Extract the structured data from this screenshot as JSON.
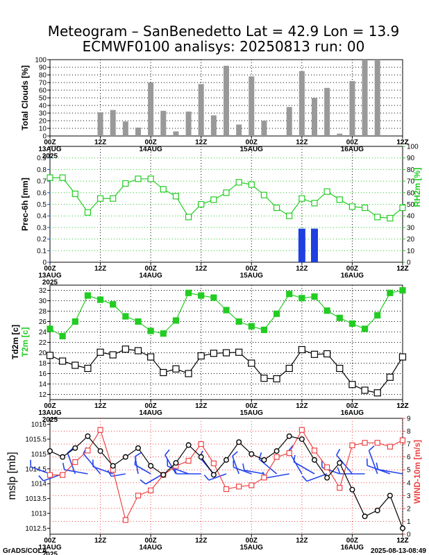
{
  "title_line1": "Meteogram – SanBenedetto Lat = 42.9 Lon = 13.9",
  "title_line2": "ECMWF0100 analisys: 20250813 run: 00",
  "footer_left": "GrADS/COLA",
  "footer_right": "2025-08-13-08:49",
  "colors": {
    "bars_clouds": "#999999",
    "precip": "#1f3fe0",
    "rh": "#22cc22",
    "t2m": "#22cc22",
    "td2m": "#000000",
    "mslp": "#000000",
    "wind": "#ee4444",
    "barbs": "#2244ee"
  },
  "chart_data": [
    {
      "type": "bar",
      "ylabel": "Total Clouds [%]",
      "ylim": [
        0,
        100
      ],
      "yticks": [
        0,
        10,
        20,
        30,
        40,
        50,
        60,
        70,
        80,
        90,
        100
      ],
      "xlim": [
        0,
        84
      ],
      "xticks": [
        "00Z",
        "12Z",
        "00Z",
        "12Z",
        "00Z",
        "12Z",
        "00Z",
        "12Z"
      ],
      "day_labels": [
        {
          "at": 0,
          "label": "13AUG"
        },
        {
          "at": 24,
          "label": "14AUG"
        },
        {
          "at": 48,
          "label": "15AUG"
        },
        {
          "at": 72,
          "label": "16AUG"
        }
      ],
      "year_label": "2025",
      "x": [
        12,
        15,
        18,
        21,
        24,
        27,
        30,
        33,
        36,
        39,
        42,
        45,
        48,
        51,
        54,
        57,
        60,
        63,
        66,
        69,
        72,
        75,
        78,
        81,
        84
      ],
      "values": [
        31,
        34,
        19,
        11,
        70,
        33,
        6,
        32,
        68,
        27,
        92,
        15,
        78,
        20,
        0,
        38,
        85,
        50,
        63,
        3,
        72,
        100,
        100,
        0,
        0
      ]
    },
    {
      "type": "bar+line",
      "ylabel_left": "Prec-6h [mm]",
      "ylabel_right": "RH2m [%]",
      "ylim_left": [
        0,
        1
      ],
      "yticks_left": [
        0,
        0.1,
        0.2,
        0.3,
        0.4,
        0.5,
        0.6,
        0.7,
        0.8,
        0.9
      ],
      "ylim_right": [
        0,
        100
      ],
      "yticks_right": [
        0,
        10,
        20,
        30,
        40,
        50,
        60,
        70,
        80,
        90,
        100
      ],
      "xlim": [
        0,
        84
      ],
      "xticks": [
        "00Z",
        "12Z",
        "00Z",
        "12Z",
        "00Z",
        "12Z",
        "00Z",
        "12Z"
      ],
      "day_labels": [
        {
          "at": 0,
          "label": "13AUG"
        },
        {
          "at": 24,
          "label": "14AUG"
        },
        {
          "at": 48,
          "label": "15AUG"
        },
        {
          "at": 72,
          "label": "16AUG"
        }
      ],
      "year_label": "2025",
      "precip": [
        {
          "x": 60,
          "value": 0.29
        },
        {
          "x": 63,
          "value": 0.29
        }
      ],
      "rh": {
        "x": [
          0,
          3,
          6,
          9,
          12,
          15,
          18,
          21,
          24,
          27,
          30,
          33,
          36,
          39,
          42,
          45,
          48,
          51,
          54,
          57,
          60,
          63,
          66,
          69,
          72,
          75,
          78,
          81,
          84
        ],
        "values": [
          73,
          73,
          59,
          43,
          55,
          55,
          68,
          72,
          72,
          63,
          57,
          39,
          50,
          54,
          60,
          69,
          67,
          58,
          47,
          40,
          55,
          51,
          61,
          54,
          48,
          47,
          39,
          38,
          47
        ]
      }
    },
    {
      "type": "line",
      "ylabel": "Td2m [c]",
      "ylabel2": "T2m [c]",
      "ylim": [
        11,
        33
      ],
      "yticks": [
        12,
        14,
        16,
        18,
        20,
        22,
        24,
        26,
        28,
        30,
        32
      ],
      "xlim": [
        0,
        84
      ],
      "xticks": [
        "00Z",
        "12Z",
        "00Z",
        "12Z",
        "00Z",
        "12Z",
        "00Z",
        "12Z"
      ],
      "day_labels": [
        {
          "at": 0,
          "label": "13AUG"
        },
        {
          "at": 24,
          "label": "14AUG"
        },
        {
          "at": 48,
          "label": "15AUG"
        },
        {
          "at": 72,
          "label": "16AUG"
        }
      ],
      "year_label": "2025",
      "x": [
        0,
        3,
        6,
        9,
        12,
        15,
        18,
        21,
        24,
        27,
        30,
        33,
        36,
        39,
        42,
        45,
        48,
        51,
        54,
        57,
        60,
        63,
        66,
        69,
        72,
        75,
        78,
        81,
        84
      ],
      "series": [
        {
          "name": "T2m",
          "values": [
            24.6,
            23.2,
            26.0,
            31.0,
            30.2,
            29.3,
            27.0,
            26.0,
            24.2,
            23.7,
            26.2,
            31.5,
            31.0,
            30.6,
            28.2,
            26.0,
            25.1,
            24.4,
            27.5,
            31.3,
            30.5,
            30.8,
            28.1,
            26.7,
            25.6,
            24.6,
            27.2,
            31.5,
            32.0
          ]
        },
        {
          "name": "Td2m",
          "values": [
            19.5,
            18.4,
            17.6,
            17.0,
            20.1,
            19.6,
            20.7,
            20.4,
            19.2,
            16.2,
            16.9,
            16.0,
            19.4,
            19.9,
            20.0,
            20.1,
            18.0,
            15.1,
            15.0,
            17.0,
            20.6,
            19.7,
            19.8,
            17.0,
            13.9,
            12.8,
            12.3,
            15.3,
            19.2
          ]
        }
      ]
    },
    {
      "type": "line",
      "ylabel_left": "mslp [mb]",
      "ylabel_right": "WIND-10m [m/s]",
      "ylim_left": [
        1012.3,
        1016.2
      ],
      "yticks_left": [
        1012.5,
        1013,
        1013.5,
        1014,
        1014.5,
        1015,
        1015.5,
        1016
      ],
      "ylim_right": [
        0,
        9
      ],
      "yticks_right": [
        0,
        1,
        2,
        3,
        4,
        5,
        6,
        7,
        8,
        9
      ],
      "xlim": [
        0,
        84
      ],
      "xticks": [
        "00Z",
        "12Z",
        "00Z",
        "12Z",
        "00Z",
        "12Z",
        "00Z",
        "12Z"
      ],
      "day_labels": [
        {
          "at": 0,
          "label": "13AUG"
        },
        {
          "at": 24,
          "label": "14AUG"
        },
        {
          "at": 48,
          "label": "15AUG"
        },
        {
          "at": 72,
          "label": "16AUG"
        }
      ],
      "year_label": "2025",
      "x": [
        0,
        3,
        6,
        9,
        12,
        15,
        18,
        21,
        24,
        27,
        30,
        33,
        36,
        39,
        42,
        45,
        48,
        51,
        54,
        57,
        60,
        63,
        66,
        69,
        72,
        75,
        78,
        81,
        84
      ],
      "series": [
        {
          "name": "mslp",
          "values": [
            1015.1,
            1014.9,
            1015.2,
            1015.6,
            1015.1,
            1014.6,
            1014.9,
            1015.2,
            1014.6,
            1014.3,
            1014.7,
            1015.3,
            1014.9,
            1014.3,
            1014.8,
            1015.4,
            1015.0,
            1014.8,
            1015.1,
            1015.6,
            1015.5,
            1014.8,
            1014.2,
            1014.7,
            1013.8,
            1012.9,
            1013.1,
            1013.6,
            1012.5
          ]
        },
        {
          "name": "WIND-10m",
          "values": [
            4.6,
            4.6,
            5.6,
            6.5,
            8.1,
            5.0,
            1.1,
            3.0,
            3.4,
            4.6,
            5.3,
            5.7,
            7.0,
            5.5,
            3.5,
            3.7,
            3.8,
            4.4,
            6.0,
            6.3,
            8.1,
            6.5,
            5.2,
            3.6,
            6.9,
            7.1,
            7.1,
            6.8,
            7.3
          ]
        }
      ]
    }
  ]
}
